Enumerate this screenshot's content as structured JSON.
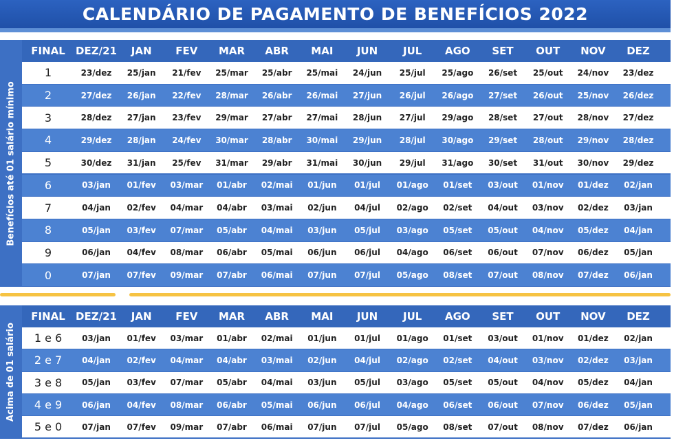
{
  "header": {
    "title": "CALENDÁRIO DE PAGAMENTO DE BENEFÍCIOS 2022"
  },
  "tables": [
    {
      "side_label": "Benefícios até 01 salário mínimo",
      "header": [
        "FINAL",
        "DEZ/21",
        "JAN",
        "FEV",
        "MAR",
        "ABR",
        "MAI",
        "JUN",
        "JUL",
        "AGO",
        "SET",
        "OUT",
        "NOV",
        "DEZ"
      ],
      "rows": [
        [
          "1",
          "23/dez",
          "25/jan",
          "21/fev",
          "25/mar",
          "25/abr",
          "25/mai",
          "24/jun",
          "25/jul",
          "25/ago",
          "26/set",
          "25/out",
          "24/nov",
          "23/dez"
        ],
        [
          "2",
          "27/dez",
          "26/jan",
          "22/fev",
          "28/mar",
          "26/abr",
          "26/mai",
          "27/jun",
          "26/jul",
          "26/ago",
          "27/set",
          "26/out",
          "25/nov",
          "26/dez"
        ],
        [
          "3",
          "28/dez",
          "27/jan",
          "23/fev",
          "29/mar",
          "27/abr",
          "27/mai",
          "28/jun",
          "27/jul",
          "29/ago",
          "28/set",
          "27/out",
          "28/nov",
          "27/dez"
        ],
        [
          "4",
          "29/dez",
          "28/jan",
          "24/fev",
          "30/mar",
          "28/abr",
          "30/mai",
          "29/jun",
          "28/jul",
          "30/ago",
          "29/set",
          "28/out",
          "29/nov",
          "28/dez"
        ],
        [
          "5",
          "30/dez",
          "31/jan",
          "25/fev",
          "31/mar",
          "29/abr",
          "31/mai",
          "30/jun",
          "29/jul",
          "31/ago",
          "30/set",
          "31/out",
          "30/nov",
          "29/dez"
        ],
        [
          "6",
          "03/jan",
          "01/fev",
          "03/mar",
          "01/abr",
          "02/mai",
          "01/jun",
          "01/jul",
          "01/ago",
          "01/set",
          "03/out",
          "01/nov",
          "01/dez",
          "02/jan"
        ],
        [
          "7",
          "04/jan",
          "02/fev",
          "04/mar",
          "04/abr",
          "03/mai",
          "02/jun",
          "04/jul",
          "02/ago",
          "02/set",
          "04/out",
          "03/nov",
          "02/dez",
          "03/jan"
        ],
        [
          "8",
          "05/jan",
          "03/fev",
          "07/mar",
          "05/abr",
          "04/mai",
          "03/jun",
          "05/jul",
          "03/ago",
          "05/set",
          "05/out",
          "04/nov",
          "05/dez",
          "04/jan"
        ],
        [
          "9",
          "06/jan",
          "04/fev",
          "08/mar",
          "06/abr",
          "05/mai",
          "06/jun",
          "06/jul",
          "04/ago",
          "06/set",
          "06/out",
          "07/nov",
          "06/dez",
          "05/jan"
        ],
        [
          "0",
          "07/jan",
          "07/fev",
          "09/mar",
          "07/abr",
          "06/mai",
          "07/jun",
          "07/jul",
          "05/ago",
          "08/set",
          "07/out",
          "08/nov",
          "07/dez",
          "06/jan"
        ]
      ]
    },
    {
      "side_label": "Acima de 01 salário",
      "header": [
        "FINAL",
        "DEZ/21",
        "JAN",
        "FEV",
        "MAR",
        "ABR",
        "MAI",
        "JUN",
        "JUL",
        "AGO",
        "SET",
        "OUT",
        "NOV",
        "DEZ"
      ],
      "rows": [
        [
          "1 e 6",
          "03/jan",
          "01/fev",
          "03/mar",
          "01/abr",
          "02/mai",
          "01/jun",
          "01/jul",
          "01/ago",
          "01/set",
          "03/out",
          "01/nov",
          "01/dez",
          "02/jan"
        ],
        [
          "2 e 7",
          "04/jan",
          "02/fev",
          "04/mar",
          "04/abr",
          "03/mai",
          "02/jun",
          "04/jul",
          "02/ago",
          "02/set",
          "04/out",
          "03/nov",
          "02/dez",
          "03/jan"
        ],
        [
          "3 e 8",
          "05/jan",
          "03/fev",
          "07/mar",
          "05/abr",
          "04/mai",
          "03/jun",
          "05/jul",
          "03/ago",
          "05/set",
          "05/out",
          "04/nov",
          "05/dez",
          "04/jan"
        ],
        [
          "4 e 9",
          "06/jan",
          "04/fev",
          "08/mar",
          "06/abr",
          "05/mai",
          "06/jun",
          "06/jul",
          "04/ago",
          "06/set",
          "06/out",
          "07/nov",
          "06/dez",
          "05/jan"
        ],
        [
          "5 e 0",
          "07/jan",
          "07/fev",
          "09/mar",
          "07/abr",
          "06/mai",
          "07/jun",
          "07/jul",
          "05/ago",
          "08/set",
          "07/out",
          "08/nov",
          "07/dez",
          "06/jan"
        ]
      ]
    }
  ]
}
